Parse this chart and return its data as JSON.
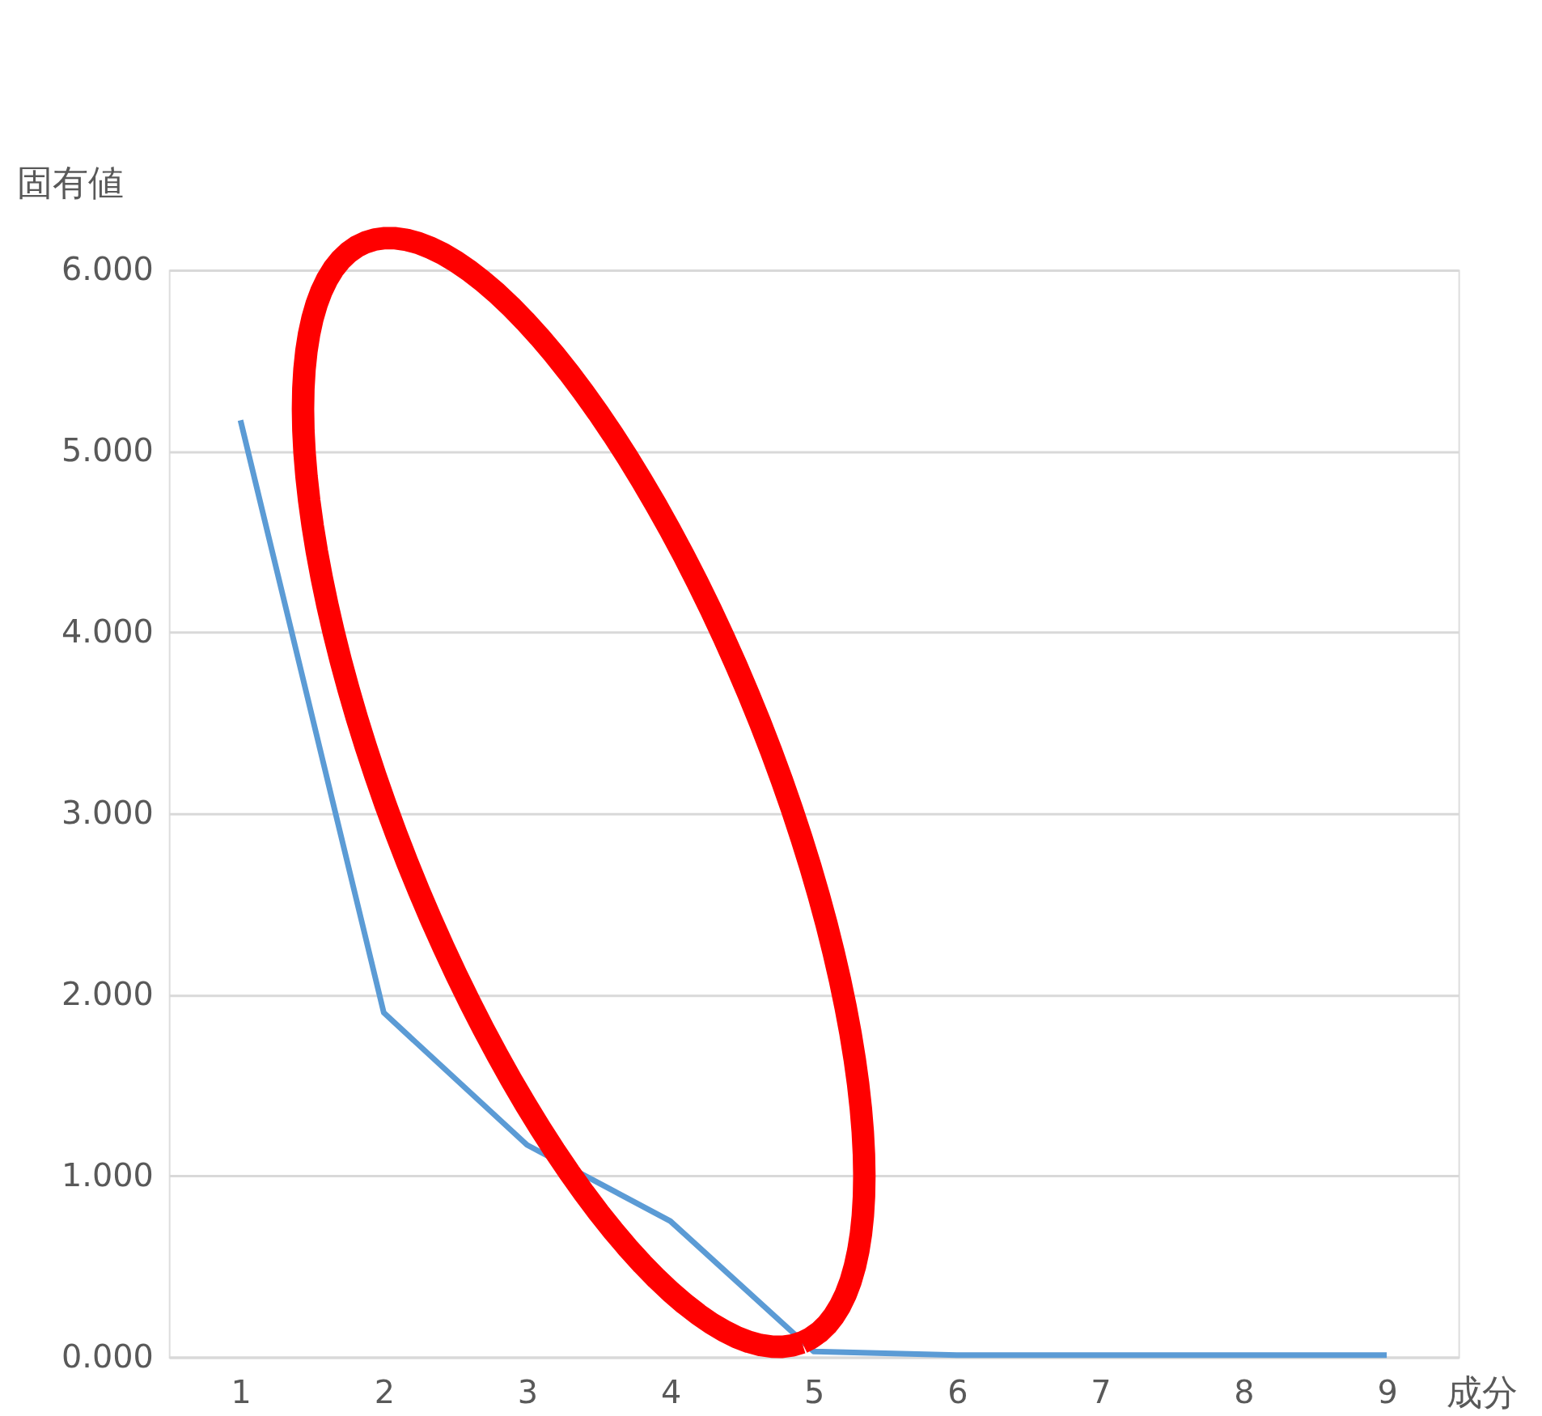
{
  "chart_data": {
    "type": "line",
    "xlabel": "成分",
    "ylabel": "固有値",
    "categories": [
      "1",
      "2",
      "3",
      "4",
      "5",
      "6",
      "7",
      "8",
      "9"
    ],
    "series": [
      {
        "color": "#5b9bd5",
        "values": [
          5.17,
          1.9,
          1.17,
          0.75,
          0.03,
          0.01,
          0.01,
          0.01,
          0.01
        ]
      }
    ],
    "ylim": [
      0,
      6
    ],
    "yticks": [
      {
        "value": 0,
        "label": "0.000"
      },
      {
        "value": 1,
        "label": "1.000"
      },
      {
        "value": 2,
        "label": "2.000"
      },
      {
        "value": 3,
        "label": "3.000"
      },
      {
        "value": 4,
        "label": "4.000"
      },
      {
        "value": 5,
        "label": "5.000"
      },
      {
        "value": 6,
        "label": "6.000"
      }
    ],
    "grid": "y",
    "legend": false,
    "marker": "none",
    "line_style": "solid"
  }
}
